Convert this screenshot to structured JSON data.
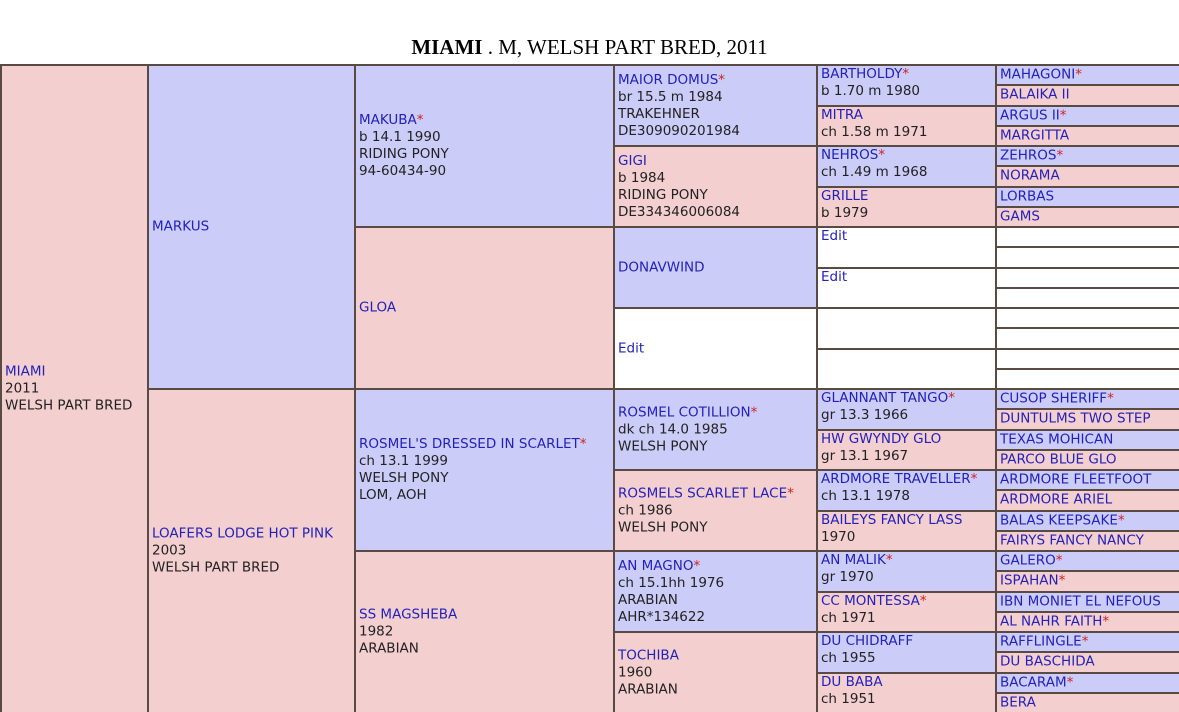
{
  "title": {
    "name": "MIAMI",
    "rest": " . M, WELSH PART BRED, 2011"
  },
  "gen1": [
    {
      "id": "miami",
      "sex": "female",
      "name": "MIAMI",
      "star": false,
      "lines": [
        "2011",
        "WELSH PART BRED"
      ]
    }
  ],
  "gen2": [
    {
      "id": "markus",
      "sex": "male",
      "name": "MARKUS",
      "star": false,
      "lines": []
    },
    {
      "id": "loafers",
      "sex": "female",
      "name": "LOAFERS LODGE HOT PINK",
      "star": false,
      "lines": [
        "2003",
        "WELSH PART BRED"
      ]
    }
  ],
  "gen3": [
    {
      "id": "makuba",
      "sex": "male",
      "name": "MAKUBA",
      "star": true,
      "lines": [
        "b 14.1 1990",
        "RIDING PONY",
        "94-60434-90"
      ]
    },
    {
      "id": "gloa",
      "sex": "female",
      "name": "GLOA",
      "star": false,
      "lines": []
    },
    {
      "id": "rosmel-dressed",
      "sex": "male",
      "name": "ROSMEL'S DRESSED IN SCARLET",
      "star": true,
      "lines": [
        "ch 13.1 1999",
        "WELSH PONY",
        "LOM, AOH"
      ]
    },
    {
      "id": "ss-magsheba",
      "sex": "female",
      "name": "SS MAGSHEBA",
      "star": false,
      "lines": [
        "1982",
        "ARABIAN"
      ]
    }
  ],
  "gen4": [
    {
      "id": "maior-domus",
      "sex": "male",
      "name": "MAIOR DOMUS",
      "star": true,
      "lines": [
        "br 15.5 m 1984",
        "TRAKEHNER",
        "DE309090201984"
      ]
    },
    {
      "id": "gigi",
      "sex": "female",
      "name": "GIGI",
      "star": false,
      "lines": [
        "b 1984",
        "RIDING PONY",
        "DE334346006084"
      ]
    },
    {
      "id": "donavwind",
      "sex": "male",
      "name": "DONAVWIND",
      "star": false,
      "lines": []
    },
    {
      "id": "gen4-edit",
      "sex": "empty",
      "name": "Edit",
      "star": false,
      "lines": []
    },
    {
      "id": "rosmel-cotillion",
      "sex": "male",
      "name": "ROSMEL COTILLION",
      "star": true,
      "lines": [
        "dk ch 14.0 1985",
        "WELSH PONY"
      ]
    },
    {
      "id": "rosmels-scarlet-lace",
      "sex": "female",
      "name": "ROSMELS SCARLET LACE",
      "star": true,
      "lines": [
        "ch 1986",
        "WELSH PONY"
      ]
    },
    {
      "id": "an-magno",
      "sex": "male",
      "name": "AN MAGNO",
      "star": true,
      "lines": [
        "ch 15.1hh 1976",
        "ARABIAN",
        "AHR*134622"
      ]
    },
    {
      "id": "tochiba",
      "sex": "female",
      "name": "TOCHIBA",
      "star": false,
      "lines": [
        "1960",
        "ARABIAN"
      ]
    }
  ],
  "gen5": [
    {
      "id": "bartholdy",
      "sex": "male",
      "name": "BARTHOLDY",
      "star": true,
      "lines": [
        "b 1.70 m 1980"
      ]
    },
    {
      "id": "mitra",
      "sex": "female",
      "name": "MITRA",
      "star": false,
      "lines": [
        "ch 1.58 m 1971"
      ]
    },
    {
      "id": "nehros",
      "sex": "male",
      "name": "NEHROS",
      "star": true,
      "lines": [
        "ch 1.49 m 1968"
      ]
    },
    {
      "id": "grille",
      "sex": "female",
      "name": "GRILLE",
      "star": false,
      "lines": [
        "b 1979"
      ]
    },
    {
      "id": "gen5-edit-1",
      "sex": "empty",
      "name": "Edit",
      "star": false,
      "lines": []
    },
    {
      "id": "gen5-edit-2",
      "sex": "empty",
      "name": "Edit",
      "star": false,
      "lines": []
    },
    {
      "id": "gen5-empty-1",
      "sex": "empty",
      "name": "",
      "star": false,
      "lines": []
    },
    {
      "id": "gen5-empty-2",
      "sex": "empty",
      "name": "",
      "star": false,
      "lines": []
    },
    {
      "id": "glannant-tango",
      "sex": "male",
      "name": "GLANNANT TANGO",
      "star": true,
      "lines": [
        "gr 13.3 1966"
      ]
    },
    {
      "id": "hw-gwyndy-glo",
      "sex": "female",
      "name": "HW GWYNDY GLO",
      "star": false,
      "lines": [
        "gr 13.1 1967"
      ]
    },
    {
      "id": "ardmore-traveller",
      "sex": "male",
      "name": "ARDMORE TRAVELLER",
      "star": true,
      "lines": [
        "ch 13.1 1978"
      ]
    },
    {
      "id": "baileys-fancy-lass",
      "sex": "female",
      "name": "BAILEYS FANCY LASS",
      "star": false,
      "lines": [
        "1970"
      ]
    },
    {
      "id": "an-malik",
      "sex": "male",
      "name": "AN MALIK",
      "star": true,
      "lines": [
        "gr 1970"
      ]
    },
    {
      "id": "cc-montessa",
      "sex": "female",
      "name": "CC MONTESSA",
      "star": true,
      "lines": [
        "ch 1971"
      ]
    },
    {
      "id": "du-chidraff",
      "sex": "male",
      "name": "DU CHIDRAFF",
      "star": false,
      "lines": [
        "ch 1955"
      ]
    },
    {
      "id": "du-baba",
      "sex": "female",
      "name": "DU BABA",
      "star": false,
      "lines": [
        "ch 1951"
      ]
    }
  ],
  "gen6": [
    {
      "id": "mahagoni",
      "sex": "male",
      "name": "MAHAGONI",
      "star": true
    },
    {
      "id": "balaika-ii",
      "sex": "female",
      "name": "BALAIKA II",
      "star": false
    },
    {
      "id": "argus-ii",
      "sex": "male",
      "name": "ARGUS II",
      "star": true
    },
    {
      "id": "margitta",
      "sex": "female",
      "name": "MARGITTA",
      "star": false
    },
    {
      "id": "zehros",
      "sex": "male",
      "name": "ZEHROS",
      "star": true
    },
    {
      "id": "norama",
      "sex": "female",
      "name": "NORAMA",
      "star": false
    },
    {
      "id": "lorbas",
      "sex": "male",
      "name": "LORBAS",
      "star": false
    },
    {
      "id": "gams",
      "sex": "female",
      "name": "GAMS",
      "star": false
    },
    {
      "id": "gen6-empty-1",
      "sex": "empty",
      "name": "",
      "star": false
    },
    {
      "id": "gen6-empty-2",
      "sex": "empty",
      "name": "",
      "star": false
    },
    {
      "id": "gen6-empty-3",
      "sex": "empty",
      "name": "",
      "star": false
    },
    {
      "id": "gen6-empty-4",
      "sex": "empty",
      "name": "",
      "star": false
    },
    {
      "id": "gen6-empty-5",
      "sex": "empty",
      "name": "",
      "star": false
    },
    {
      "id": "gen6-empty-6",
      "sex": "empty",
      "name": "",
      "star": false
    },
    {
      "id": "gen6-empty-7",
      "sex": "empty",
      "name": "",
      "star": false
    },
    {
      "id": "gen6-empty-8",
      "sex": "empty",
      "name": "",
      "star": false
    },
    {
      "id": "cusop-sheriff",
      "sex": "male",
      "name": "CUSOP SHERIFF",
      "star": true
    },
    {
      "id": "duntulms-two-step",
      "sex": "female",
      "name": "DUNTULMS TWO STEP",
      "star": false
    },
    {
      "id": "texas-mohican",
      "sex": "male",
      "name": "TEXAS MOHICAN",
      "star": false
    },
    {
      "id": "parco-blue-glo",
      "sex": "female",
      "name": "PARCO BLUE GLO",
      "star": false
    },
    {
      "id": "ardmore-fleetfoot",
      "sex": "male",
      "name": "ARDMORE FLEETFOOT",
      "star": false
    },
    {
      "id": "ardmore-ariel",
      "sex": "female",
      "name": "ARDMORE ARIEL",
      "star": false
    },
    {
      "id": "balas-keepsake",
      "sex": "male",
      "name": "BALAS KEEPSAKE",
      "star": true
    },
    {
      "id": "fairys-fancy-nancy",
      "sex": "female",
      "name": "FAIRYS FANCY NANCY",
      "star": false
    },
    {
      "id": "galero",
      "sex": "male",
      "name": "GALERO",
      "star": true
    },
    {
      "id": "ispahan",
      "sex": "female",
      "name": "ISPAHAN",
      "star": true
    },
    {
      "id": "ibn-moniet-el-nefous",
      "sex": "male",
      "name": "IBN MONIET EL NEFOUS",
      "star": false
    },
    {
      "id": "al-nahr-faith",
      "sex": "female",
      "name": "AL NAHR FAITH",
      "star": true
    },
    {
      "id": "rafflingle",
      "sex": "male",
      "name": "RAFFLINGLE",
      "star": true
    },
    {
      "id": "du-baschida",
      "sex": "female",
      "name": "DU BASCHIDA",
      "star": false
    },
    {
      "id": "bacaram",
      "sex": "male",
      "name": "BACARAM",
      "star": true
    },
    {
      "id": "bera",
      "sex": "female",
      "name": "BERA",
      "star": false
    }
  ]
}
